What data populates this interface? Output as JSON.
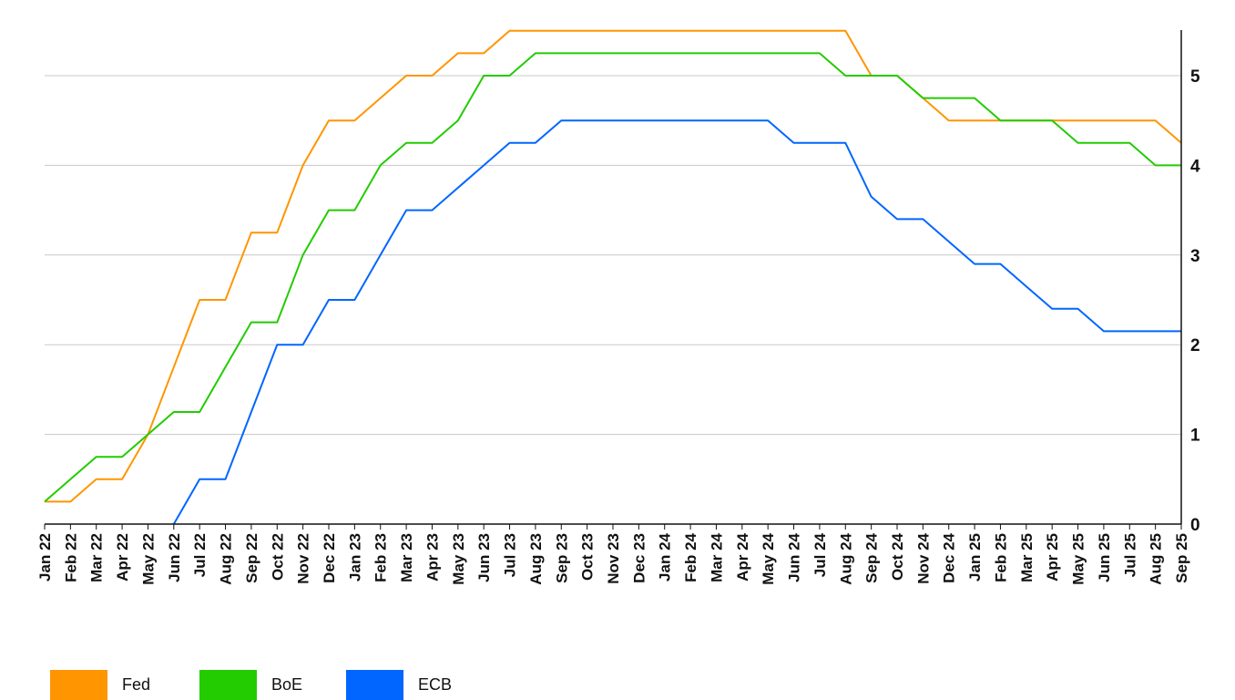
{
  "chart_data": {
    "type": "line",
    "title": "",
    "xlabel": "",
    "ylabel": "",
    "ylim": [
      0,
      5.5
    ],
    "yticks": [
      0,
      1,
      2,
      3,
      4,
      5
    ],
    "y_axis_position": "right",
    "grid": true,
    "legend_position": "bottom-left",
    "x": [
      "Jan 22",
      "Feb 22",
      "Mar 22",
      "Apr 22",
      "May 22",
      "Jun 22",
      "Jul 22",
      "Aug 22",
      "Sep 22",
      "Oct 22",
      "Nov 22",
      "Dec 22",
      "Jan 23",
      "Feb 23",
      "Mar 23",
      "Apr 23",
      "May 23",
      "Jun 23",
      "Jul 23",
      "Aug 23",
      "Sep 23",
      "Oct 23",
      "Nov 23",
      "Dec 23",
      "Jan 24",
      "Feb 24",
      "Mar 24",
      "Apr 24",
      "May 24",
      "Jun 24",
      "Jul 24",
      "Aug 24",
      "Sep 24",
      "Oct 24",
      "Nov 24",
      "Dec 24",
      "Jan 25",
      "Feb 25",
      "Mar 25",
      "Apr 25",
      "May 25",
      "Jun 25",
      "Jul 25",
      "Aug 25",
      "Sep 25"
    ],
    "series": [
      {
        "name": "Fed",
        "color": "#FF9500",
        "values": [
          0.25,
          0.25,
          0.5,
          0.5,
          1.0,
          1.75,
          2.5,
          2.5,
          3.25,
          3.25,
          4.0,
          4.5,
          4.5,
          4.75,
          5.0,
          5.0,
          5.25,
          5.25,
          5.5,
          5.5,
          5.5,
          5.5,
          5.5,
          5.5,
          5.5,
          5.5,
          5.5,
          5.5,
          5.5,
          5.5,
          5.5,
          5.5,
          5.0,
          5.0,
          4.75,
          4.5,
          4.5,
          4.5,
          4.5,
          4.5,
          4.5,
          4.5,
          4.5,
          4.5,
          4.25
        ]
      },
      {
        "name": "BoE",
        "color": "#22CC00",
        "values": [
          0.25,
          0.5,
          0.75,
          0.75,
          1.0,
          1.25,
          1.25,
          1.75,
          2.25,
          2.25,
          3.0,
          3.5,
          3.5,
          4.0,
          4.25,
          4.25,
          4.5,
          5.0,
          5.0,
          5.25,
          5.25,
          5.25,
          5.25,
          5.25,
          5.25,
          5.25,
          5.25,
          5.25,
          5.25,
          5.25,
          5.25,
          5.0,
          5.0,
          5.0,
          4.75,
          4.75,
          4.75,
          4.5,
          4.5,
          4.5,
          4.25,
          4.25,
          4.25,
          4.0,
          4.0
        ]
      },
      {
        "name": "ECB",
        "color": "#0066FF",
        "values": [
          null,
          null,
          null,
          null,
          null,
          0,
          0.5,
          0.5,
          1.25,
          2.0,
          2.0,
          2.5,
          2.5,
          3.0,
          3.5,
          3.5,
          3.75,
          4.0,
          4.25,
          4.25,
          4.5,
          4.5,
          4.5,
          4.5,
          4.5,
          4.5,
          4.5,
          4.5,
          4.5,
          4.25,
          4.25,
          4.25,
          3.65,
          3.4,
          3.4,
          3.15,
          2.9,
          2.9,
          2.65,
          2.4,
          2.4,
          2.15,
          2.15,
          2.15,
          2.15
        ]
      }
    ]
  }
}
